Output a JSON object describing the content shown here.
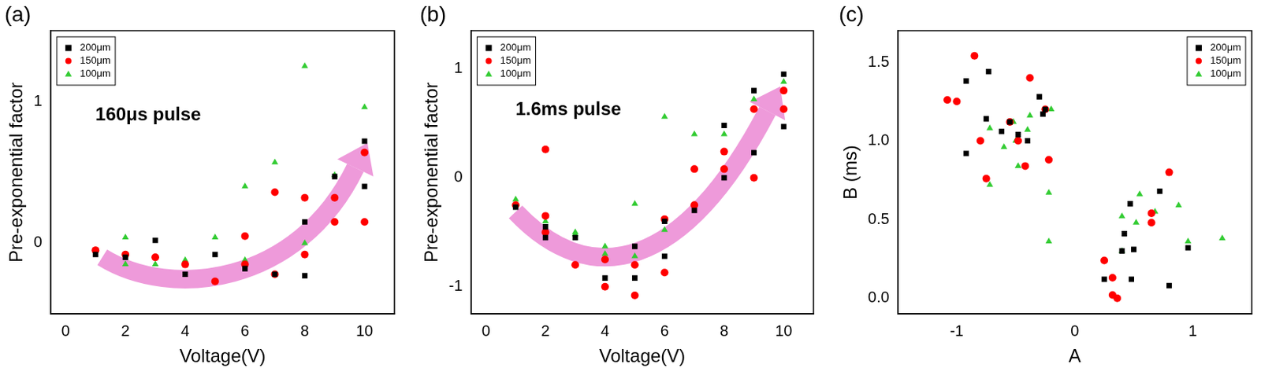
{
  "chart_data": [
    {
      "type": "scatter",
      "title": "(a)",
      "annotations": [
        "160μs pulse"
      ],
      "x_label": "Voltage(V)",
      "y_label": "Pre-exponential factor",
      "xlim": [
        -0.5,
        11
      ],
      "xticks": [
        0,
        2,
        4,
        6,
        8,
        10
      ],
      "ylim": [
        -0.5,
        1.5
      ],
      "yticks": [
        0,
        1
      ],
      "legend": "top-left",
      "grid": false,
      "series": [
        {
          "name": "200μm",
          "color": "#000000",
          "marker": "square",
          "x": [
            1,
            2,
            3,
            4,
            5,
            6,
            7,
            8,
            8,
            9,
            10,
            10
          ],
          "values": [
            -0.08,
            -0.1,
            0.02,
            -0.22,
            -0.08,
            -0.18,
            -0.22,
            0.15,
            -0.23,
            0.47,
            0.72,
            0.4
          ]
        },
        {
          "name": "150μm",
          "color": "#ff0000",
          "marker": "circle",
          "x": [
            1,
            2,
            3,
            4,
            5,
            6,
            6,
            7,
            7,
            8,
            8,
            9,
            9,
            10,
            10
          ],
          "values": [
            -0.05,
            -0.08,
            -0.1,
            -0.15,
            -0.27,
            0.05,
            -0.15,
            0.36,
            -0.22,
            0.32,
            -0.08,
            0.32,
            0.15,
            0.64,
            0.15
          ]
        },
        {
          "name": "100μm",
          "color": "#33cc33",
          "marker": "triangle",
          "x": [
            1,
            2,
            2,
            3,
            4,
            5,
            6,
            6,
            7,
            8,
            8,
            9,
            10
          ],
          "values": [
            -0.05,
            0.04,
            -0.15,
            -0.15,
            -0.12,
            0.04,
            0.4,
            -0.12,
            0.57,
            1.25,
            0.0,
            0.48,
            0.96
          ]
        }
      ]
    },
    {
      "type": "scatter",
      "title": "(b)",
      "annotations": [
        "1.6ms pulse"
      ],
      "x_label": "Voltage(V)",
      "y_label": "Pre-exponential factor",
      "xlim": [
        -0.5,
        11
      ],
      "xticks": [
        0,
        2,
        4,
        6,
        8,
        10
      ],
      "ylim": [
        -1.25,
        1.35
      ],
      "yticks": [
        -1,
        0,
        1
      ],
      "legend": "top-left",
      "grid": false,
      "series": [
        {
          "name": "200μm",
          "color": "#000000",
          "marker": "square",
          "x": [
            1,
            2,
            2,
            3,
            4,
            5,
            5,
            6,
            6,
            7,
            8,
            8,
            9,
            9,
            10,
            10
          ],
          "values": [
            -0.27,
            -0.55,
            -0.45,
            -0.55,
            -0.92,
            -0.63,
            -0.92,
            -0.72,
            -0.4,
            -0.3,
            0.48,
            0.0,
            0.8,
            0.23,
            0.95,
            0.47
          ]
        },
        {
          "name": "150μm",
          "color": "#ff0000",
          "marker": "circle",
          "x": [
            1,
            2,
            2,
            2,
            3,
            4,
            4,
            5,
            5,
            6,
            6,
            7,
            7,
            8,
            8,
            9,
            9,
            10,
            10
          ],
          "values": [
            -0.25,
            0.26,
            -0.35,
            -0.5,
            -0.8,
            -1.0,
            -0.75,
            -0.8,
            -1.08,
            -0.87,
            -0.38,
            0.08,
            -0.25,
            0.24,
            0.08,
            0.63,
            0.0,
            0.8,
            0.63
          ]
        },
        {
          "name": "100μm",
          "color": "#33cc33",
          "marker": "triangle",
          "x": [
            1,
            2,
            3,
            3,
            4,
            4,
            5,
            5,
            6,
            6,
            7,
            7,
            8,
            9,
            10
          ],
          "values": [
            -0.2,
            -0.4,
            -0.5,
            -0.52,
            -0.63,
            -0.7,
            -0.24,
            -0.72,
            0.56,
            -0.48,
            0.4,
            -0.25,
            0.4,
            0.72,
            0.88
          ]
        }
      ]
    },
    {
      "type": "scatter",
      "title": "(c)",
      "x_label": "A",
      "y_label": "B (ms)",
      "xlim": [
        -1.5,
        1.5
      ],
      "xticks": [
        -1,
        0,
        1
      ],
      "ylim": [
        -0.1,
        1.7
      ],
      "yticks": [
        {
          "value": 0,
          "label": "0.0"
        },
        {
          "value": 0.5,
          "label": "0.5"
        },
        {
          "value": 1,
          "label": "1.0"
        },
        {
          "value": 1.5,
          "label": "1.5"
        }
      ],
      "legend": "top-right",
      "grid": false,
      "series": [
        {
          "name": "200μm",
          "color": "#000000",
          "marker": "square",
          "x": [
            -0.92,
            -0.92,
            -0.75,
            -0.73,
            -0.62,
            -0.55,
            -0.48,
            -0.4,
            -0.3,
            -0.27,
            -0.25,
            0.25,
            0.4,
            0.42,
            0.47,
            0.48,
            0.5,
            0.72,
            0.8,
            0.96
          ],
          "values": [
            1.38,
            0.92,
            1.14,
            1.44,
            1.06,
            1.12,
            1.04,
            1.0,
            1.28,
            1.17,
            1.2,
            0.12,
            0.3,
            0.41,
            0.6,
            0.12,
            0.31,
            0.68,
            0.08,
            0.32
          ]
        },
        {
          "name": "150μm",
          "color": "#ff0000",
          "marker": "circle",
          "x": [
            -1.08,
            -1.0,
            -0.85,
            -0.8,
            -0.75,
            -0.55,
            -0.48,
            -0.42,
            -0.38,
            -0.25,
            -0.22,
            0.25,
            0.32,
            0.32,
            0.36,
            0.65,
            0.65,
            0.8
          ],
          "values": [
            1.26,
            1.25,
            1.54,
            1.0,
            0.76,
            1.12,
            1.0,
            0.84,
            1.4,
            1.2,
            0.88,
            0.24,
            0.13,
            0.02,
            0.0,
            0.54,
            0.48,
            0.8
          ]
        },
        {
          "name": "100μm",
          "color": "#33cc33",
          "marker": "triangle",
          "x": [
            -0.72,
            -0.72,
            -0.6,
            -0.52,
            -0.5,
            -0.48,
            -0.4,
            -0.38,
            -0.2,
            -0.22,
            -0.22,
            0.4,
            0.4,
            0.52,
            0.55,
            0.68,
            0.88,
            0.96,
            1.25
          ],
          "values": [
            1.08,
            0.72,
            0.96,
            1.12,
            1.0,
            0.84,
            1.07,
            1.16,
            1.2,
            0.67,
            0.36,
            0.52,
            0.3,
            0.48,
            0.66,
            0.55,
            0.59,
            0.36,
            0.38
          ]
        }
      ]
    }
  ]
}
